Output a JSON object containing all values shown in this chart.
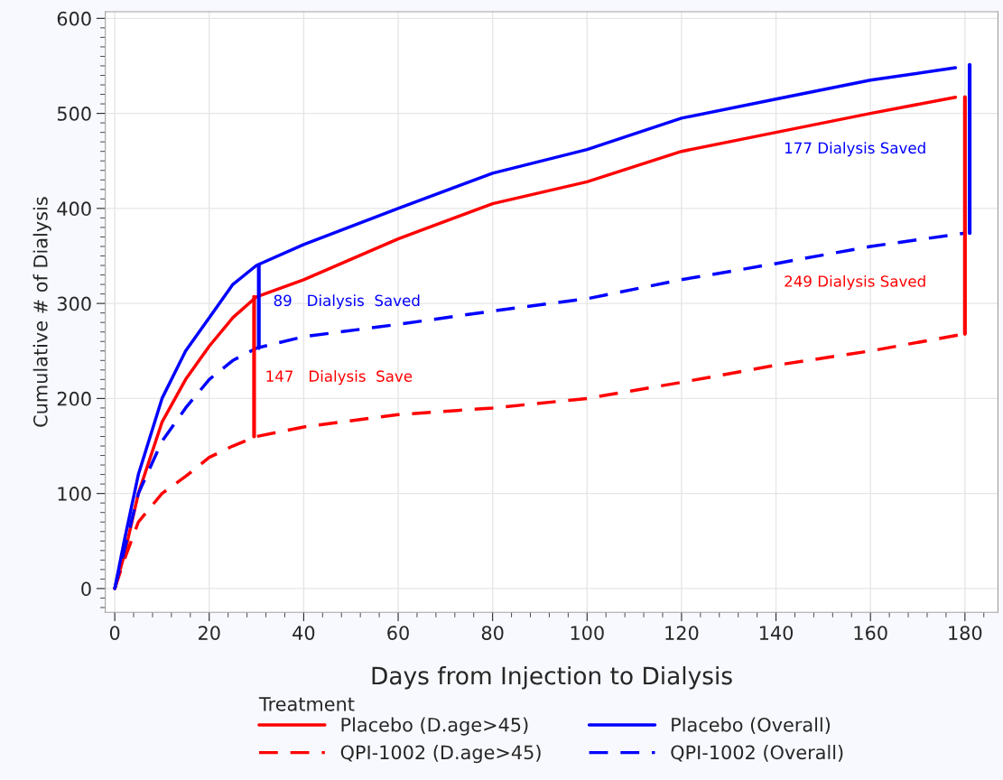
{
  "chart_data": {
    "type": "line",
    "xlabel": "Days from Injection to Dialysis",
    "ylabel": "Cumulative # of Dialysis",
    "legend_title": "Treatment",
    "xlim": [
      -2,
      187
    ],
    "ylim": [
      -25,
      607
    ],
    "xticks": [
      0,
      20,
      40,
      60,
      80,
      100,
      120,
      140,
      160,
      180
    ],
    "yticks": [
      0,
      100,
      200,
      300,
      400,
      500,
      600
    ],
    "grid": true,
    "legend": "bottom",
    "series": [
      {
        "name": "Placebo (D.age>45)",
        "color": "#ff0000",
        "line_style": "solid",
        "x": [
          0,
          2,
          5,
          10,
          15,
          20,
          25,
          30,
          40,
          60,
          80,
          100,
          120,
          140,
          160,
          178
        ],
        "values": [
          0,
          35,
          100,
          175,
          220,
          255,
          285,
          307,
          325,
          368,
          405,
          428,
          460,
          480,
          500,
          517
        ]
      },
      {
        "name": "QPI-1002 (D.age>45)",
        "color": "#ff0000",
        "line_style": "dashed",
        "x": [
          0,
          2,
          5,
          10,
          15,
          20,
          25,
          30,
          40,
          60,
          80,
          100,
          120,
          140,
          160,
          180
        ],
        "values": [
          0,
          30,
          70,
          100,
          118,
          138,
          150,
          160,
          170,
          183,
          190,
          200,
          217,
          235,
          250,
          268
        ]
      },
      {
        "name": "Placebo (Overall)",
        "color": "#0000ff",
        "line_style": "solid",
        "x": [
          0,
          2,
          5,
          10,
          15,
          20,
          25,
          30,
          40,
          60,
          80,
          100,
          120,
          140,
          160,
          178
        ],
        "values": [
          0,
          50,
          120,
          200,
          250,
          285,
          320,
          340,
          362,
          400,
          437,
          462,
          495,
          515,
          535,
          548
        ]
      },
      {
        "name": "QPI-1002 (Overall)",
        "color": "#0000ff",
        "line_style": "dashed",
        "x": [
          0,
          2,
          5,
          10,
          15,
          20,
          25,
          30,
          40,
          60,
          80,
          100,
          120,
          140,
          160,
          180
        ],
        "values": [
          0,
          40,
          100,
          155,
          190,
          220,
          240,
          253,
          265,
          278,
          292,
          305,
          325,
          342,
          360,
          374
        ]
      },
      {
        "color": "#ff0000",
        "line_style": "solid",
        "x": [
          29.5,
          29.5
        ],
        "values": [
          160,
          307
        ]
      },
      {
        "color": "#0000ff",
        "line_style": "solid",
        "x": [
          30.5,
          30.5
        ],
        "values": [
          253,
          340
        ]
      },
      {
        "color": "#ff0000",
        "line_style": "solid",
        "x": [
          180,
          180
        ],
        "values": [
          268,
          517
        ]
      },
      {
        "color": "#0000ff",
        "line_style": "solid",
        "x": [
          181,
          181
        ],
        "values": [
          374,
          551
        ]
      }
    ],
    "annotations": [
      "89   Dialysis  Saved",
      "147   Dialysis  Save",
      "177 Dialysis Saved",
      "249 Dialysis Saved"
    ]
  }
}
